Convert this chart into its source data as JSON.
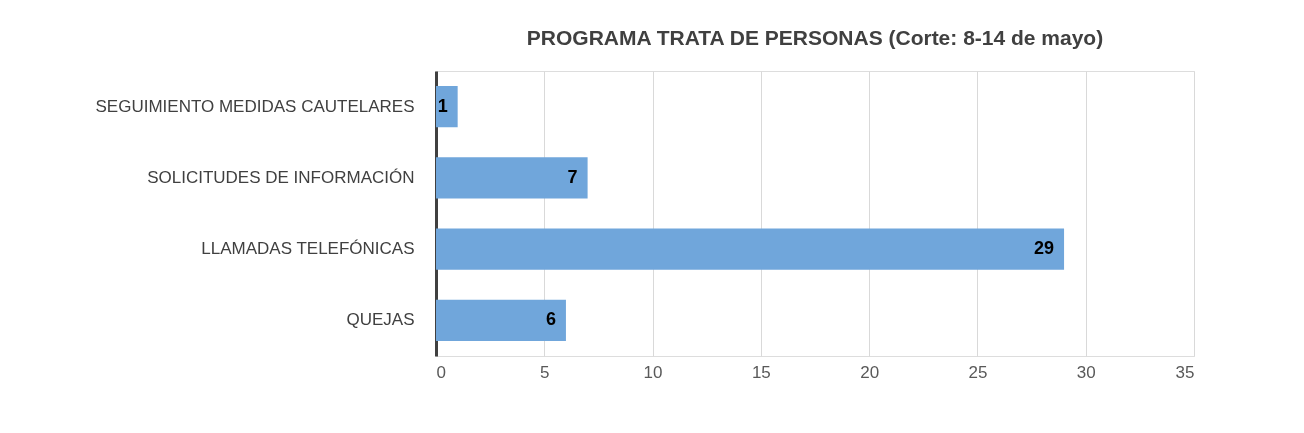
{
  "chart_data": {
    "type": "bar",
    "orientation": "horizontal",
    "title": "PROGRAMA TRATA DE PERSONAS (Corte: 8-14 de mayo)",
    "categories": [
      "SEGUIMIENTO MEDIDAS CAUTELARES",
      "SOLICITUDES DE INFORMACIÓN",
      "LLAMADAS TELEFÓNICAS",
      "QUEJAS"
    ],
    "values": [
      1,
      7,
      29,
      6
    ],
    "color": "#70a6db",
    "xlim": [
      0,
      35
    ],
    "xticks": [
      0,
      5,
      10,
      15,
      20,
      25,
      30,
      35
    ],
    "grid": "x",
    "data_labels": true
  }
}
